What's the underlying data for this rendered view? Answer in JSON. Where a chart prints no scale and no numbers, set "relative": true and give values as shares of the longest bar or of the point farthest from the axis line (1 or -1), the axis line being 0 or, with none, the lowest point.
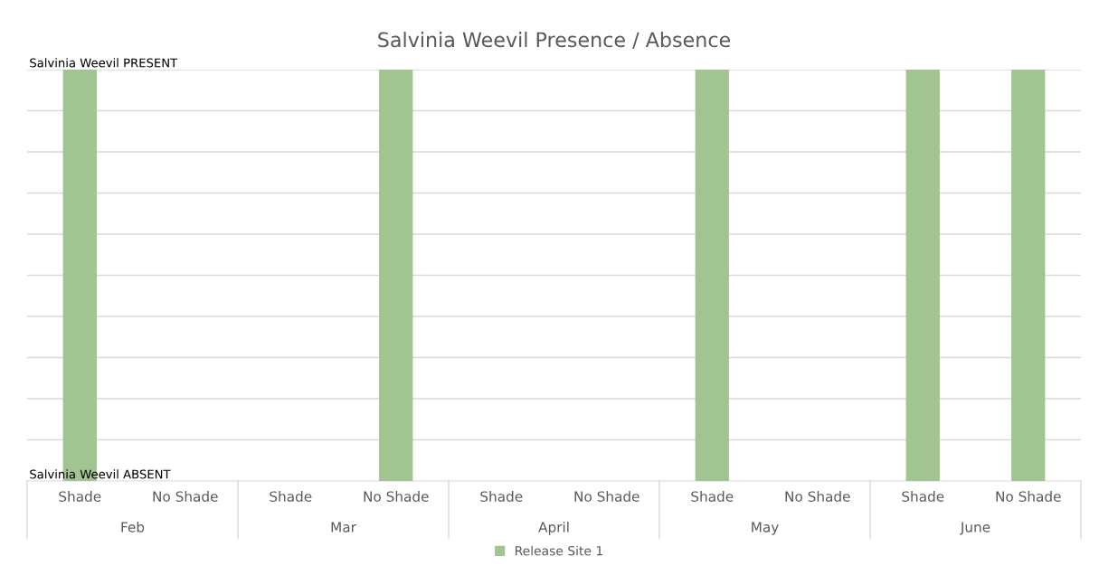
{
  "chart_data": {
    "type": "bar",
    "title": "Salvinia Weevil Presence / Absence",
    "categories": [
      "Shade",
      "No Shade",
      "Shade",
      "No Shade",
      "Shade",
      "No Shade",
      "Shade",
      "No Shade",
      "Shade",
      "No Shade"
    ],
    "series": [
      {
        "name": "Release Site 1",
        "color": "#a1c490",
        "values": [
          1,
          0,
          0,
          1,
          0,
          0,
          1,
          0,
          1,
          1
        ]
      }
    ],
    "relative": true,
    "annotations": [
      "Salvinia Weevil PRESENT",
      "Salvinia Weevil ABSENT",
      "Feb",
      "Mar",
      "April",
      "May",
      "June"
    ],
    "grid": "y",
    "legend": "bottom"
  }
}
